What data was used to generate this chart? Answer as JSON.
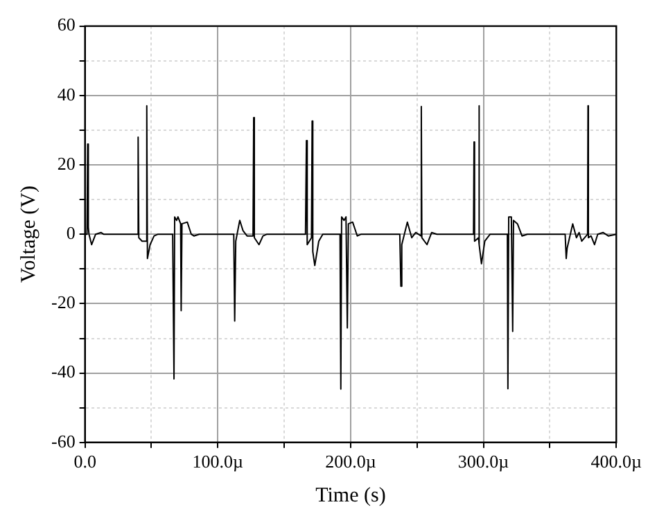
{
  "chart_data": {
    "type": "line",
    "xlabel": "Time (s)",
    "ylabel": "Voltage (V)",
    "xlim": [
      0,
      400
    ],
    "ylim": [
      -60,
      60
    ],
    "xticks": [
      {
        "value": 0,
        "label": "0.0"
      },
      {
        "value": 50,
        "label": null
      },
      {
        "value": 100,
        "label": "100.0µ"
      },
      {
        "value": 150,
        "label": null
      },
      {
        "value": 200,
        "label": "200.0µ"
      },
      {
        "value": 250,
        "label": null
      },
      {
        "value": 300,
        "label": "300.0µ"
      },
      {
        "value": 350,
        "label": null
      },
      {
        "value": 400,
        "label": "400.0µ"
      }
    ],
    "yticks": [
      -60,
      {
        "value": -50,
        "label": null
      },
      -40,
      {
        "value": -30,
        "label": null
      },
      -20,
      {
        "value": -10,
        "label": null
      },
      0,
      {
        "value": 10,
        "label": null
      },
      20,
      {
        "value": 30,
        "label": null
      },
      40,
      {
        "value": 50,
        "label": null
      },
      60
    ],
    "grid": true,
    "legend": false,
    "marker": "none",
    "line_style": "solid",
    "series": [
      {
        "color": "#000000",
        "x": [
          0,
          1.5,
          2,
          2.5,
          3,
          5,
          8,
          12,
          14,
          39.5,
          40,
          40.5,
          43,
          46,
          46.5,
          47,
          49,
          52,
          55,
          66,
          67,
          67.5,
          69,
          70,
          72,
          72.4,
          73,
          77,
          80,
          82,
          86,
          112,
          112.7,
          113.5,
          116.5,
          119,
          122,
          126.5,
          127,
          127.5,
          131,
          134,
          137,
          166,
          166.7,
          167.3,
          170.5,
          171,
          171.5,
          173,
          176,
          179,
          192,
          192.6,
          193.2,
          195,
          196.5,
          197.5,
          198.3,
          201.5,
          205,
          208,
          237,
          237.8,
          238.5,
          242.7,
          246,
          249,
          253,
          253.2,
          253.6,
          257.5,
          261,
          265,
          292.5,
          292.9,
          293.3,
          296.3,
          296.5,
          297,
          298.5,
          301,
          305,
          318,
          318.4,
          319,
          321,
          322,
          322.6,
          325.6,
          329,
          333,
          361.5,
          362.3,
          363,
          367.2,
          370,
          372,
          374,
          378.4,
          378.7,
          379,
          381,
          383.6,
          386,
          390,
          394,
          400
        ],
        "values": [
          0,
          0,
          26,
          2,
          0,
          -3,
          0,
          0.5,
          0,
          0,
          28,
          -1,
          -2,
          -2,
          37,
          -7,
          -3,
          -0.5,
          0,
          0,
          -41.7,
          5,
          4,
          5,
          3,
          -22,
          3,
          3.5,
          0,
          -0.5,
          0,
          0,
          -25,
          -2,
          4,
          1,
          -0.5,
          -0.5,
          33.6,
          -1,
          -3,
          -0.5,
          0,
          0,
          27,
          -3,
          -1,
          32.6,
          -5,
          -9,
          -2,
          0,
          0,
          -44.6,
          5,
          4,
          5,
          -27,
          3,
          3.5,
          -0.5,
          0,
          0,
          -15,
          -3,
          3.5,
          -1,
          0.5,
          -0.5,
          36.8,
          -1,
          -3,
          0.5,
          0,
          0,
          26.6,
          -2,
          -1,
          37,
          -3,
          -8.5,
          -2,
          0,
          0,
          -44.5,
          5,
          5,
          -28,
          4,
          3,
          -0.5,
          0,
          0,
          -7,
          -4,
          3,
          -1,
          0.5,
          -2,
          0,
          37,
          -1,
          -0.5,
          -3,
          0,
          0.5,
          -0.5,
          0
        ]
      }
    ]
  }
}
